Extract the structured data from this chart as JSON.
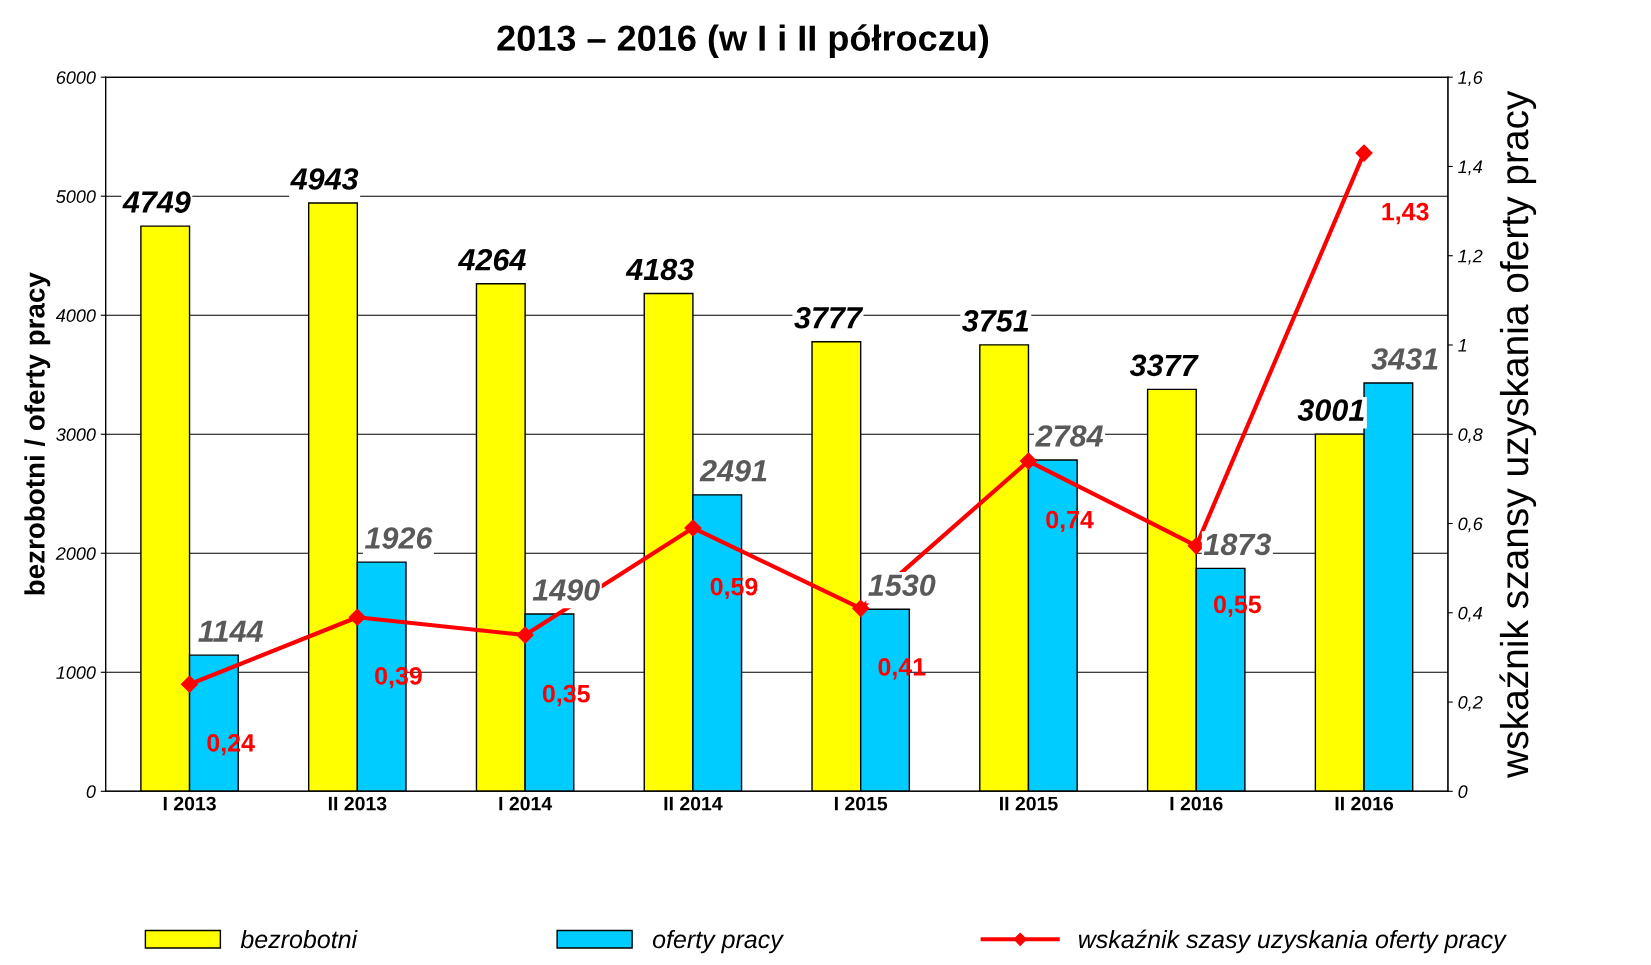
{
  "chart_data": {
    "type": "bar",
    "title": "2013 – 2016 (w I i II półroczu)",
    "ylabel": "bezrobotni / oferty pracy",
    "y2label": "wskaźnik szansy uzyskania oferty pracy",
    "categories": [
      "I 2013",
      "II 2013",
      "I 2014",
      "II 2014",
      "I 2015",
      "II 2015",
      "I 2016",
      "II 2016"
    ],
    "series": [
      {
        "name": "bezrobotni",
        "color": "#ffff00",
        "values": [
          4749,
          4943,
          4264,
          4183,
          3777,
          3751,
          3377,
          3001
        ],
        "value_labels": [
          "4749",
          "4943",
          "4264",
          "4183",
          "3777",
          "3751",
          "3377",
          "3001"
        ]
      },
      {
        "name": "oferty pracy",
        "color": "#00ccff",
        "values": [
          1144,
          1926,
          1490,
          2491,
          1530,
          2784,
          1873,
          3431
        ],
        "value_labels": [
          "1144",
          "1926",
          "1490",
          "2491",
          "1530",
          "2784",
          "1873",
          "3431"
        ]
      },
      {
        "name": "wskaźnik szasy uzyskania oferty pracy",
        "type": "line",
        "axis": "y2",
        "color": "#ff0000",
        "marker": "diamond",
        "values": [
          0.24,
          0.39,
          0.35,
          0.59,
          0.41,
          0.74,
          0.55,
          1.43
        ],
        "value_labels": [
          "0,24",
          "0,39",
          "0,35",
          "0,59",
          "0,41",
          "0,74",
          "0,55",
          "1,43"
        ]
      }
    ],
    "ylim": [
      0,
      6000
    ],
    "yticks": [
      0,
      1000,
      2000,
      3000,
      4000,
      5000,
      6000
    ],
    "y2lim": [
      0,
      1.6
    ],
    "y2ticks": [
      0,
      {
        "value": 0.2,
        "label": "0,2"
      },
      {
        "value": 0.4,
        "label": "0,4"
      },
      {
        "value": 0.6,
        "label": "0,6"
      },
      {
        "value": 0.8,
        "label": "0,8"
      },
      1,
      {
        "value": 1.2,
        "label": "1,2"
      },
      {
        "value": 1.4,
        "label": "1,4"
      },
      {
        "value": 1.6,
        "label": "1,6"
      }
    ],
    "grid": "y",
    "legend": "bottom"
  }
}
